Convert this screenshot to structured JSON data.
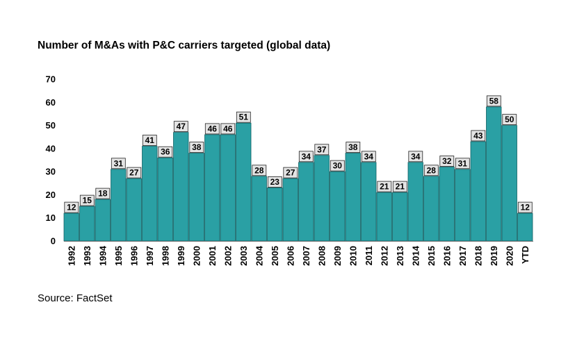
{
  "title": "Number of M&As with P&C carriers targeted (global data)",
  "source": "Source: FactSet",
  "colors": {
    "bar": "#2aa0a4",
    "bar_stroke": "#0f5f62",
    "label_bg": "#e4e4e4"
  },
  "chart_data": {
    "type": "bar",
    "title": "Number of M&As with P&C carriers targeted (global data)",
    "xlabel": "",
    "ylabel": "",
    "ylim": [
      0,
      70
    ],
    "yticks": [
      "0",
      "10",
      "20",
      "30",
      "40",
      "50",
      "60",
      "70"
    ],
    "grid": false,
    "categories": [
      "1992",
      "1993",
      "1994",
      "1995",
      "1996",
      "1997",
      "1998",
      "1999",
      "2000",
      "2001",
      "2002",
      "2003",
      "2004",
      "2005",
      "2006",
      "2007",
      "2008",
      "2009",
      "2010",
      "2011",
      "2012",
      "2013",
      "2014",
      "2015",
      "2016",
      "2017",
      "2018",
      "2019",
      "2020",
      "YTD"
    ],
    "values": [
      12,
      15,
      18,
      31,
      27,
      41,
      36,
      47,
      38,
      46,
      46,
      51,
      28,
      23,
      27,
      34,
      37,
      30,
      38,
      34,
      21,
      21,
      34,
      28,
      32,
      31,
      43,
      58,
      50,
      12
    ]
  }
}
